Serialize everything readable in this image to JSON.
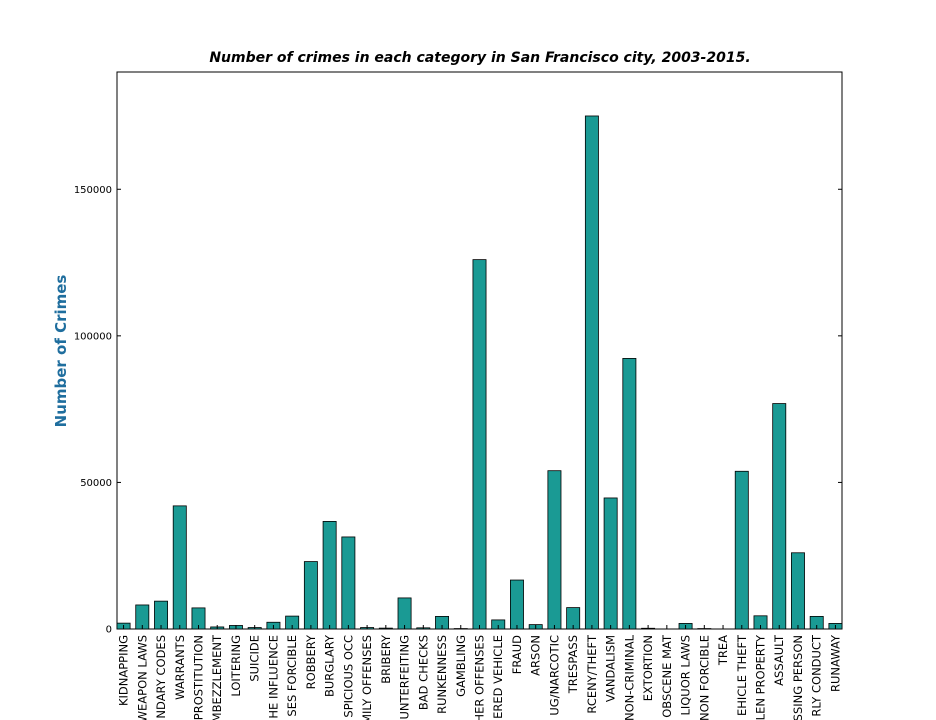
{
  "chart_data": {
    "type": "bar",
    "title": "Number of crimes in each category in San Francisco city, 2003-2015.",
    "y_label": "Number of Crimes",
    "categories": [
      "KIDNAPPING",
      "WEAPON LAWS",
      "NDARY CODES",
      "WARRANTS",
      "PROSTITUTION",
      "MBEZZLEMENT",
      "LOITERING",
      "SUICIDE",
      "HE INFLUENCE",
      "SES FORCIBLE",
      "ROBBERY",
      "BURGLARY",
      "SPICIOUS OCC",
      "MILY OFFENSES",
      "BRIBERY",
      "UNTERFEITING",
      "BAD CHECKS",
      "RUNKENNESS",
      "GAMBLING",
      "HER OFFENSES",
      "ERED VEHICLE",
      "FRAUD",
      "ARSON",
      "UG/NARCOTIC",
      "TRESPASS",
      "RCENY/THEFT",
      "VANDALISM",
      "NON-CRIMINAL",
      "EXTORTION",
      "OBSCENE MAT",
      "LIQUOR LAWS",
      "NON FORCIBLE",
      "TREA",
      "EHICLE THEFT",
      "LEN PROPERTY",
      "ASSAULT",
      "SSING PERSON",
      "RLY CONDUCT",
      "RUNAWAY"
    ],
    "values": [
      2000,
      8200,
      9500,
      42000,
      7200,
      700,
      1200,
      500,
      2300,
      4400,
      23000,
      36700,
      31400,
      500,
      300,
      10600,
      400,
      4300,
      150,
      126000,
      3100,
      16700,
      1500,
      54000,
      7300,
      175000,
      44700,
      92300,
      250,
      20,
      1900,
      150,
      6,
      53800,
      4500,
      76900,
      26000,
      4300,
      1900
    ],
    "color": "#1a9a94",
    "ylim": [
      0,
      190000
    ],
    "yticks": [
      0,
      50000,
      100000,
      150000
    ]
  }
}
